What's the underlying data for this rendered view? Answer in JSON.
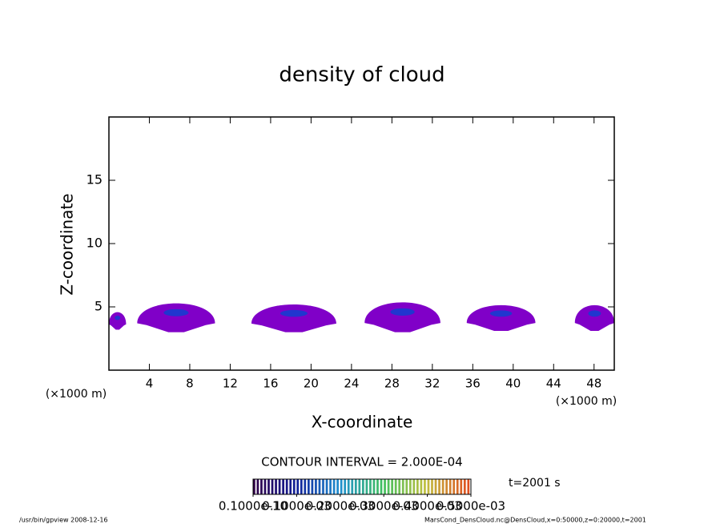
{
  "chart_data": {
    "type": "contour",
    "title": "density of cloud",
    "x_label": "X-coordinate",
    "y_label": "Z-coordinate",
    "x_unit": "(×1000 m)",
    "xlim": [
      0,
      50
    ],
    "xticks": [
      4,
      8,
      12,
      16,
      20,
      24,
      28,
      32,
      36,
      40,
      44,
      48
    ],
    "ylim": [
      0,
      20
    ],
    "yticks": [
      5,
      10,
      15
    ],
    "clouds": [
      {
        "x": [
          0,
          1.7
        ],
        "z": [
          3.2,
          4.9
        ]
      },
      {
        "x": [
          2.8,
          10.5
        ],
        "z": [
          3.0,
          5.8
        ]
      },
      {
        "x": [
          14.1,
          22.5
        ],
        "z": [
          3.0,
          5.7
        ]
      },
      {
        "x": [
          25.3,
          32.8
        ],
        "z": [
          3.0,
          5.9
        ]
      },
      {
        "x": [
          35.4,
          42.2
        ],
        "z": [
          3.1,
          5.6
        ]
      },
      {
        "x": [
          46.1,
          50
        ],
        "z": [
          3.1,
          5.6
        ]
      }
    ],
    "cloud_color": "#8000c8",
    "core_color": "#1040d0",
    "contour_interval": "CONTOUR INTERVAL = 2.000E-04",
    "time": "t=2001 s",
    "colorbar": {
      "clim": [
        0,
        0.0005
      ],
      "colors": [
        "#300048",
        "#10209a",
        "#2090d0",
        "#40c060",
        "#c0c040",
        "#e05020"
      ],
      "ticks": [
        {
          "value": 1e-11,
          "label": "0.1000e-10"
        },
        {
          "value": 0.0001,
          "label": "0.1000e-03"
        },
        {
          "value": 0.0002,
          "label": "0.2000e-03"
        },
        {
          "value": 0.0003,
          "label": "0.3000e-03"
        },
        {
          "value": 0.0004,
          "label": "0.4000e-03"
        },
        {
          "value": 0.0005,
          "label": "0.5000e-03"
        }
      ]
    },
    "footer_left": "/usr/bin/gpview   2008-12-16",
    "footer_right": "MarsCond_DensCloud.nc@DensCloud,x=0:50000,z=0:20000,t=2001"
  }
}
